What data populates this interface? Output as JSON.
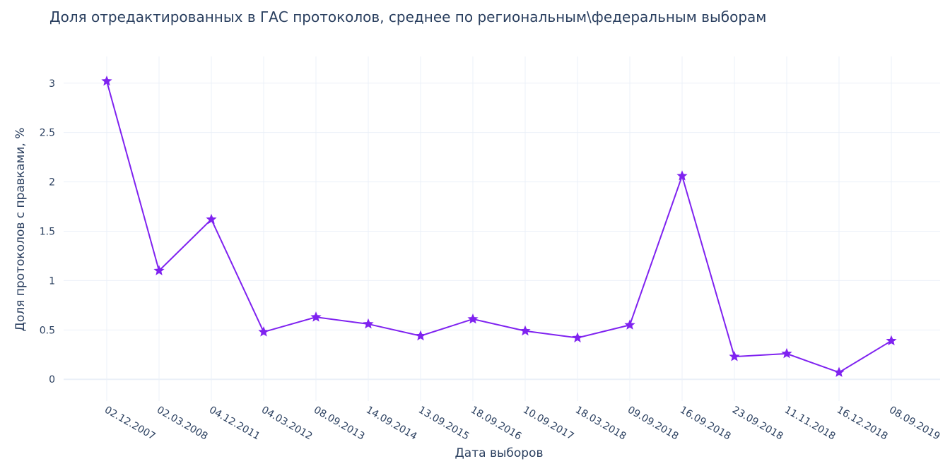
{
  "chart_data": {
    "type": "line",
    "title": "Доля отредактированных в ГАС протоколов, среднее по региональным\\федеральным выборам",
    "xlabel": "Дата выборов",
    "ylabel": "Доля протоколов с правками, %",
    "categories": [
      "02.12.2007",
      "02.03.2008",
      "04.12.2011",
      "04.03.2012",
      "08.09.2013",
      "14.09.2014",
      "13.09.2015",
      "18.09.2016",
      "10.09.2017",
      "18.03.2018",
      "09.09.2018",
      "16.09.2018",
      "23.09.2018",
      "11.11.2018",
      "16.12.2018",
      "08.09.2019"
    ],
    "series": [
      {
        "name": "",
        "values": [
          3.02,
          1.1,
          1.62,
          0.48,
          0.63,
          0.56,
          0.44,
          0.61,
          0.49,
          0.42,
          0.55,
          2.06,
          0.23,
          0.26,
          0.07,
          0.39
        ],
        "color": "#7f22f0",
        "marker": "star"
      }
    ],
    "ylim": [
      -0.22,
      3.27
    ],
    "yticks": [
      0,
      0.5,
      1,
      1.5,
      2,
      2.5,
      3
    ],
    "ytick_labels": [
      "0",
      "0.5",
      "1",
      "1.5",
      "2",
      "2.5",
      "3"
    ],
    "grid": true,
    "legend": "none"
  }
}
